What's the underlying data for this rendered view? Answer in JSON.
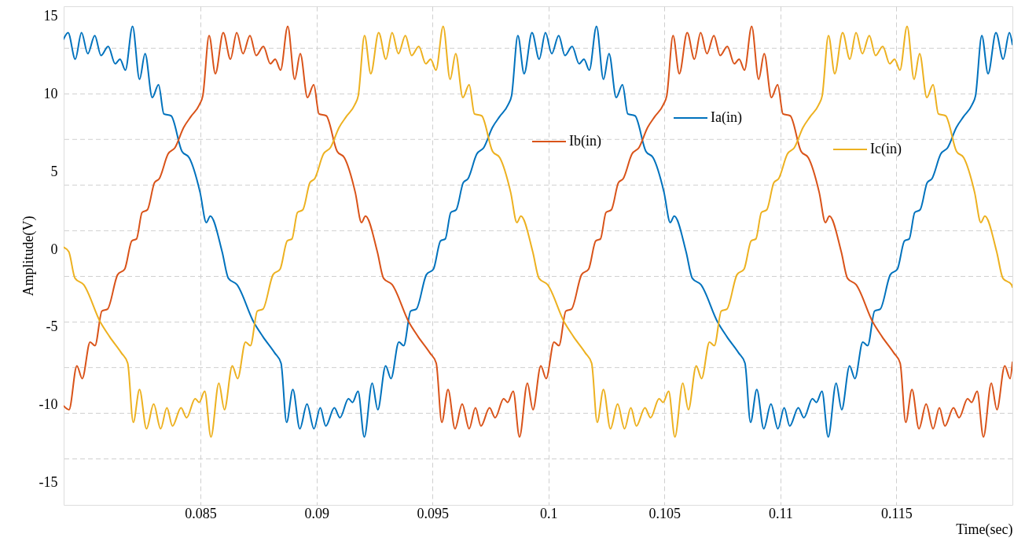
{
  "chart_data": {
    "type": "line",
    "xlabel": "Time(sec)",
    "ylabel": "Amplitude(V)",
    "xlim": [
      0.0791,
      0.12
    ],
    "xticks": [
      0.085,
      0.09,
      0.095,
      0.1,
      0.105,
      0.11,
      0.115
    ],
    "ylim": [
      -16.45,
      15.65
    ],
    "yticks": [
      15,
      {
        "value": 12.95,
        "label": null
      },
      10,
      {
        "value": 10.01,
        "label": null
      },
      {
        "value": 7.08,
        "label": null
      },
      5,
      {
        "value": 4.14,
        "label": null
      },
      {
        "value": 1.2,
        "label": null
      },
      0,
      {
        "value": -1.74,
        "label": null
      },
      {
        "value": -4.68,
        "label": null
      },
      -5,
      {
        "value": -7.61,
        "label": null
      },
      -10,
      {
        "value": -10.55,
        "label": null
      },
      {
        "value": -13.49,
        "label": null
      },
      -15
    ],
    "grid": true,
    "legend": "top right",
    "series": [
      {
        "name": "Ia(in)",
        "color": "#0072bd",
        "x": [
          0.0791,
          0.07929,
          0.0796,
          0.07987,
          0.08014,
          0.08044,
          0.08071,
          0.08102,
          0.08132,
          0.08153,
          0.08176,
          0.08207,
          0.08237,
          0.08261,
          0.08292,
          0.08319,
          0.08342,
          0.08373,
          0.0842,
          0.08451,
          0.08498,
          0.08525,
          0.08542,
          0.08593,
          0.0862,
          0.08657,
          0.08729,
          0.08769,
          0.0882,
          0.08847,
          0.08871,
          0.08898,
          0.08928,
          0.08959,
          0.08989,
          0.09016,
          0.0904,
          0.09077,
          0.09101,
          0.09138,
          0.09155,
          0.09179,
          0.09206,
          0.0924,
          0.09264,
          0.09298,
          0.09321,
          0.09355,
          0.09376,
          0.09406,
          0.0943,
          0.09474,
          0.09504,
          0.09535,
          0.09555,
          0.09579,
          0.09602,
          0.09633,
          0.09653,
          0.09691,
          0.09721,
          0.09758,
          0.09789,
          0.09826,
          0.09841,
          0.09868,
          0.09895,
          0.09929,
          0.0996,
          0.09987,
          0.10014,
          0.10044,
          0.10071,
          0.10102,
          0.10132,
          0.10153,
          0.10176,
          0.10207,
          0.10237,
          0.10261,
          0.10292,
          0.10319,
          0.10342,
          0.10373,
          0.1042,
          0.10451,
          0.10498,
          0.10525,
          0.10542,
          0.10593,
          0.1062,
          0.10657,
          0.10729,
          0.10769,
          0.1082,
          0.10847,
          0.10871,
          0.10898,
          0.10928,
          0.10959,
          0.10989,
          0.11016,
          0.1104,
          0.11077,
          0.11101,
          0.11138,
          0.11155,
          0.11179,
          0.11206,
          0.1124,
          0.11264,
          0.11298,
          0.11321,
          0.11355,
          0.11376,
          0.11406,
          0.1143,
          0.11474,
          0.11504,
          0.11535,
          0.11555,
          0.11579,
          0.11602,
          0.11633,
          0.11653,
          0.11691,
          0.11721,
          0.11758,
          0.11789,
          0.11826,
          0.11841,
          0.11868,
          0.11895,
          0.11929,
          0.1196,
          0.11987,
          0.12
        ],
        "values": [
          13.54,
          13.95,
          12.25,
          13.95,
          12.6,
          13.77,
          12.48,
          13.07,
          11.95,
          12.25,
          11.54,
          14.36,
          10.95,
          12.6,
          9.78,
          10.6,
          8.72,
          8.6,
          6.31,
          5.9,
          3.67,
          1.73,
          2.14,
          -0.15,
          -1.86,
          -2.27,
          -4.68,
          -5.62,
          -6.67,
          -7.32,
          -11.14,
          -9.02,
          -11.55,
          -9.96,
          -11.55,
          -10.2,
          -11.37,
          -10.2,
          -10.84,
          -9.61,
          -9.85,
          -9.14,
          -12.08,
          -8.61,
          -10.32,
          -7.5,
          -8.32,
          -5.97,
          -6.2,
          -3.97,
          -3.85,
          -1.62,
          -1.27,
          0.55,
          0.67,
          2.38,
          2.55,
          4.31,
          4.55,
          6.14,
          6.55,
          7.84,
          8.54,
          9.31,
          9.9,
          13.77,
          11.31,
          13.95,
          12.25,
          13.95,
          12.6,
          13.77,
          12.48,
          13.07,
          11.95,
          12.25,
          11.54,
          14.36,
          10.95,
          12.6,
          9.78,
          10.6,
          8.72,
          8.6,
          6.31,
          5.9,
          3.67,
          1.73,
          2.14,
          -0.15,
          -1.86,
          -2.27,
          -4.68,
          -5.62,
          -6.67,
          -7.32,
          -11.14,
          -9.02,
          -11.55,
          -9.96,
          -11.55,
          -10.2,
          -11.37,
          -10.2,
          -10.84,
          -9.61,
          -9.85,
          -9.14,
          -12.08,
          -8.61,
          -10.32,
          -7.5,
          -8.32,
          -5.97,
          -6.2,
          -3.97,
          -3.85,
          -1.62,
          -1.27,
          0.55,
          0.67,
          2.38,
          2.55,
          4.31,
          4.55,
          6.14,
          6.55,
          7.84,
          8.54,
          9.31,
          9.9,
          13.77,
          11.31,
          13.95,
          12.25,
          13.95,
          13.19
        ]
      },
      {
        "name": "Ib(in)",
        "color": "#d95319",
        "x": [
          0.0791,
          0.07933,
          0.07967,
          0.0799,
          0.08024,
          0.08045,
          0.08075,
          0.08099,
          0.08143,
          0.08173,
          0.08204,
          0.08224,
          0.08248,
          0.08271,
          0.08302,
          0.08322,
          0.0836,
          0.0839,
          0.08427,
          0.08458,
          0.08495,
          0.0851,
          0.08537,
          0.08564,
          0.08598,
          0.08629,
          0.08656,
          0.08683,
          0.08713,
          0.0874,
          0.08771,
          0.08801,
          0.08822,
          0.08845,
          0.08876,
          0.08906,
          0.0893,
          0.08961,
          0.08988,
          0.09011,
          0.09042,
          0.09089,
          0.0912,
          0.09167,
          0.09194,
          0.09211,
          0.09262,
          0.09289,
          0.09326,
          0.09398,
          0.09438,
          0.09489,
          0.09516,
          0.0954,
          0.09567,
          0.09597,
          0.09628,
          0.09658,
          0.09685,
          0.09709,
          0.09746,
          0.0977,
          0.09807,
          0.09824,
          0.09848,
          0.09875,
          0.09909,
          0.09933,
          0.09967,
          0.0999,
          0.10024,
          0.10045,
          0.10075,
          0.10099,
          0.10143,
          0.10173,
          0.10204,
          0.10224,
          0.10248,
          0.10271,
          0.10302,
          0.10322,
          0.1036,
          0.1039,
          0.10427,
          0.10458,
          0.10495,
          0.1051,
          0.10537,
          0.10564,
          0.10598,
          0.10629,
          0.10656,
          0.10683,
          0.10713,
          0.1074,
          0.10771,
          0.10801,
          0.10822,
          0.10845,
          0.10876,
          0.10906,
          0.1093,
          0.10961,
          0.10988,
          0.11011,
          0.11042,
          0.11089,
          0.1112,
          0.11167,
          0.11194,
          0.11211,
          0.11262,
          0.11289,
          0.11326,
          0.11398,
          0.11438,
          0.11489,
          0.11516,
          0.1154,
          0.11567,
          0.11597,
          0.11628,
          0.11658,
          0.11685,
          0.11709,
          0.11746,
          0.1177,
          0.11807,
          0.11824,
          0.11848,
          0.11875,
          0.11909,
          0.11933,
          0.11967,
          0.1199,
          0.12
        ],
        "values": [
          -10.08,
          -10.32,
          -7.5,
          -8.32,
          -5.97,
          -6.2,
          -3.97,
          -3.85,
          -1.62,
          -1.27,
          0.55,
          0.67,
          2.38,
          2.55,
          4.31,
          4.55,
          6.14,
          6.55,
          7.84,
          8.54,
          9.31,
          9.9,
          13.77,
          11.31,
          13.95,
          12.25,
          13.95,
          12.6,
          13.77,
          12.48,
          13.07,
          11.95,
          12.25,
          11.54,
          14.36,
          10.95,
          12.6,
          9.78,
          10.6,
          8.72,
          8.6,
          6.31,
          5.9,
          3.67,
          1.73,
          2.14,
          -0.15,
          -1.86,
          -2.27,
          -4.68,
          -5.62,
          -6.67,
          -7.32,
          -11.14,
          -9.02,
          -11.55,
          -9.96,
          -11.55,
          -10.2,
          -11.37,
          -10.2,
          -10.84,
          -9.61,
          -9.85,
          -9.14,
          -12.08,
          -8.61,
          -10.32,
          -7.5,
          -8.32,
          -5.97,
          -6.2,
          -3.97,
          -3.85,
          -1.62,
          -1.27,
          0.55,
          0.67,
          2.38,
          2.55,
          4.31,
          4.55,
          6.14,
          6.55,
          7.84,
          8.54,
          9.31,
          9.9,
          13.77,
          11.31,
          13.95,
          12.25,
          13.95,
          12.6,
          13.77,
          12.48,
          13.07,
          11.95,
          12.25,
          11.54,
          14.36,
          10.95,
          12.6,
          9.78,
          10.6,
          8.72,
          8.6,
          6.31,
          5.9,
          3.67,
          1.73,
          2.14,
          -0.15,
          -1.86,
          -2.27,
          -4.68,
          -5.62,
          -6.67,
          -7.32,
          -11.14,
          -9.02,
          -11.55,
          -9.96,
          -11.55,
          -10.2,
          -11.37,
          -10.2,
          -10.84,
          -9.61,
          -9.85,
          -9.14,
          -12.08,
          -8.61,
          -10.32,
          -7.5,
          -8.32,
          -7.26
        ]
      },
      {
        "name": "Ic(in)",
        "color": "#edb120",
        "x": [
          0.0791,
          0.07932,
          0.07959,
          0.07996,
          0.08068,
          0.08108,
          0.08159,
          0.08186,
          0.0821,
          0.08237,
          0.08267,
          0.08298,
          0.08328,
          0.08355,
          0.08379,
          0.08416,
          0.0844,
          0.08477,
          0.08494,
          0.08518,
          0.08545,
          0.08579,
          0.08603,
          0.08637,
          0.0866,
          0.08694,
          0.08715,
          0.08745,
          0.08769,
          0.08813,
          0.08843,
          0.08874,
          0.08894,
          0.08918,
          0.08941,
          0.08972,
          0.08992,
          0.0903,
          0.0906,
          0.09097,
          0.09128,
          0.09165,
          0.0918,
          0.09207,
          0.09234,
          0.09268,
          0.09299,
          0.09326,
          0.09353,
          0.09383,
          0.0941,
          0.09441,
          0.09471,
          0.09492,
          0.09515,
          0.09546,
          0.09576,
          0.096,
          0.09631,
          0.09658,
          0.09681,
          0.09712,
          0.09759,
          0.0979,
          0.09837,
          0.09864,
          0.09881,
          0.09932,
          0.09959,
          0.09996,
          0.10068,
          0.10108,
          0.10159,
          0.10186,
          0.1021,
          0.10237,
          0.10267,
          0.10298,
          0.10328,
          0.10355,
          0.10379,
          0.10416,
          0.1044,
          0.10477,
          0.10494,
          0.10518,
          0.10545,
          0.10579,
          0.10603,
          0.10637,
          0.1066,
          0.10694,
          0.10715,
          0.10745,
          0.10769,
          0.10813,
          0.10843,
          0.10874,
          0.10894,
          0.10918,
          0.10941,
          0.10972,
          0.10992,
          0.1103,
          0.1106,
          0.11097,
          0.11128,
          0.11165,
          0.1118,
          0.11207,
          0.11234,
          0.11268,
          0.11299,
          0.11326,
          0.11353,
          0.11383,
          0.1141,
          0.11441,
          0.11471,
          0.11492,
          0.11515,
          0.11546,
          0.11576,
          0.116,
          0.11631,
          0.11658,
          0.11681,
          0.11712,
          0.11759,
          0.1179,
          0.11837,
          0.11864,
          0.11881,
          0.11932,
          0.11959,
          0.11996,
          0.12
        ],
        "values": [
          0.14,
          -0.15,
          -1.86,
          -2.27,
          -4.68,
          -5.62,
          -6.67,
          -7.32,
          -11.14,
          -9.02,
          -11.55,
          -9.96,
          -11.55,
          -10.2,
          -11.37,
          -10.2,
          -10.84,
          -9.61,
          -9.85,
          -9.14,
          -12.08,
          -8.61,
          -10.32,
          -7.5,
          -8.32,
          -5.97,
          -6.2,
          -3.97,
          -3.85,
          -1.62,
          -1.27,
          0.55,
          0.67,
          2.38,
          2.55,
          4.31,
          4.55,
          6.14,
          6.55,
          7.84,
          8.54,
          9.31,
          9.9,
          13.77,
          11.31,
          13.95,
          12.25,
          13.95,
          12.6,
          13.77,
          12.48,
          13.07,
          11.95,
          12.25,
          11.54,
          14.36,
          10.95,
          12.6,
          9.78,
          10.6,
          8.72,
          8.6,
          6.31,
          5.9,
          3.67,
          1.73,
          2.14,
          -0.15,
          -1.86,
          -2.27,
          -4.68,
          -5.62,
          -6.67,
          -7.32,
          -11.14,
          -9.02,
          -11.55,
          -9.96,
          -11.55,
          -10.2,
          -11.37,
          -10.2,
          -10.84,
          -9.61,
          -9.85,
          -9.14,
          -12.08,
          -8.61,
          -10.32,
          -7.5,
          -8.32,
          -5.97,
          -6.2,
          -3.97,
          -3.85,
          -1.62,
          -1.27,
          0.55,
          0.67,
          2.38,
          2.55,
          4.31,
          4.55,
          6.14,
          6.55,
          7.84,
          8.54,
          9.31,
          9.9,
          13.77,
          11.31,
          13.95,
          12.25,
          13.95,
          12.6,
          13.77,
          12.48,
          13.07,
          11.95,
          12.25,
          11.54,
          14.36,
          10.95,
          12.6,
          9.78,
          10.6,
          8.72,
          8.6,
          6.31,
          5.9,
          3.67,
          1.73,
          2.14,
          -0.15,
          -1.86,
          -2.27,
          -2.44
        ]
      }
    ]
  }
}
